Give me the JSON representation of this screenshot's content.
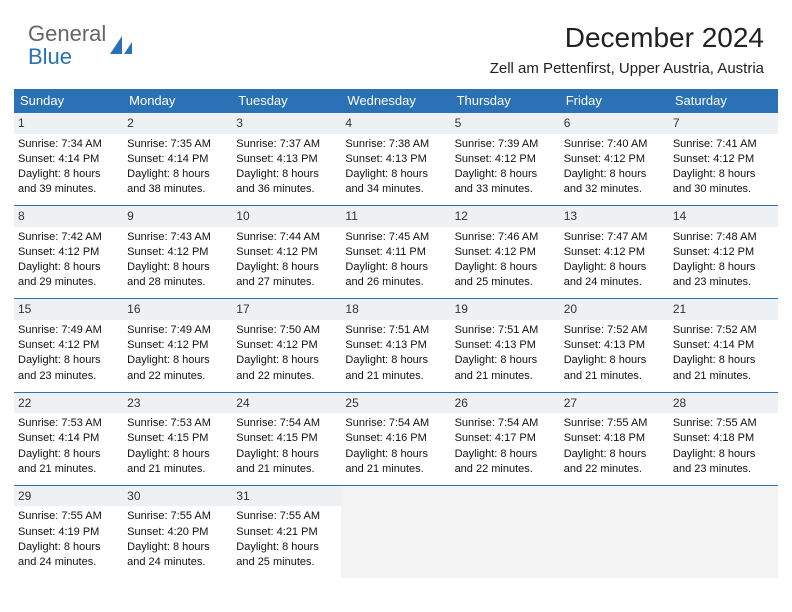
{
  "logo": {
    "top": "General",
    "bottom": "Blue"
  },
  "header": {
    "month_title": "December 2024",
    "location": "Zell am Pettenfirst, Upper Austria, Austria"
  },
  "colors": {
    "header_bg": "#2a72b5",
    "week_border": "#2a72b5",
    "daynum_bg": "#eef1f4",
    "empty_bg": "#f3f3f3",
    "text": "#111111"
  },
  "dayNames": [
    "Sunday",
    "Monday",
    "Tuesday",
    "Wednesday",
    "Thursday",
    "Friday",
    "Saturday"
  ],
  "weeks": [
    [
      {
        "n": "1",
        "sr": "Sunrise: 7:34 AM",
        "ss": "Sunset: 4:14 PM",
        "d1": "Daylight: 8 hours",
        "d2": "and 39 minutes."
      },
      {
        "n": "2",
        "sr": "Sunrise: 7:35 AM",
        "ss": "Sunset: 4:14 PM",
        "d1": "Daylight: 8 hours",
        "d2": "and 38 minutes."
      },
      {
        "n": "3",
        "sr": "Sunrise: 7:37 AM",
        "ss": "Sunset: 4:13 PM",
        "d1": "Daylight: 8 hours",
        "d2": "and 36 minutes."
      },
      {
        "n": "4",
        "sr": "Sunrise: 7:38 AM",
        "ss": "Sunset: 4:13 PM",
        "d1": "Daylight: 8 hours",
        "d2": "and 34 minutes."
      },
      {
        "n": "5",
        "sr": "Sunrise: 7:39 AM",
        "ss": "Sunset: 4:12 PM",
        "d1": "Daylight: 8 hours",
        "d2": "and 33 minutes."
      },
      {
        "n": "6",
        "sr": "Sunrise: 7:40 AM",
        "ss": "Sunset: 4:12 PM",
        "d1": "Daylight: 8 hours",
        "d2": "and 32 minutes."
      },
      {
        "n": "7",
        "sr": "Sunrise: 7:41 AM",
        "ss": "Sunset: 4:12 PM",
        "d1": "Daylight: 8 hours",
        "d2": "and 30 minutes."
      }
    ],
    [
      {
        "n": "8",
        "sr": "Sunrise: 7:42 AM",
        "ss": "Sunset: 4:12 PM",
        "d1": "Daylight: 8 hours",
        "d2": "and 29 minutes."
      },
      {
        "n": "9",
        "sr": "Sunrise: 7:43 AM",
        "ss": "Sunset: 4:12 PM",
        "d1": "Daylight: 8 hours",
        "d2": "and 28 minutes."
      },
      {
        "n": "10",
        "sr": "Sunrise: 7:44 AM",
        "ss": "Sunset: 4:12 PM",
        "d1": "Daylight: 8 hours",
        "d2": "and 27 minutes."
      },
      {
        "n": "11",
        "sr": "Sunrise: 7:45 AM",
        "ss": "Sunset: 4:11 PM",
        "d1": "Daylight: 8 hours",
        "d2": "and 26 minutes."
      },
      {
        "n": "12",
        "sr": "Sunrise: 7:46 AM",
        "ss": "Sunset: 4:12 PM",
        "d1": "Daylight: 8 hours",
        "d2": "and 25 minutes."
      },
      {
        "n": "13",
        "sr": "Sunrise: 7:47 AM",
        "ss": "Sunset: 4:12 PM",
        "d1": "Daylight: 8 hours",
        "d2": "and 24 minutes."
      },
      {
        "n": "14",
        "sr": "Sunrise: 7:48 AM",
        "ss": "Sunset: 4:12 PM",
        "d1": "Daylight: 8 hours",
        "d2": "and 23 minutes."
      }
    ],
    [
      {
        "n": "15",
        "sr": "Sunrise: 7:49 AM",
        "ss": "Sunset: 4:12 PM",
        "d1": "Daylight: 8 hours",
        "d2": "and 23 minutes."
      },
      {
        "n": "16",
        "sr": "Sunrise: 7:49 AM",
        "ss": "Sunset: 4:12 PM",
        "d1": "Daylight: 8 hours",
        "d2": "and 22 minutes."
      },
      {
        "n": "17",
        "sr": "Sunrise: 7:50 AM",
        "ss": "Sunset: 4:12 PM",
        "d1": "Daylight: 8 hours",
        "d2": "and 22 minutes."
      },
      {
        "n": "18",
        "sr": "Sunrise: 7:51 AM",
        "ss": "Sunset: 4:13 PM",
        "d1": "Daylight: 8 hours",
        "d2": "and 21 minutes."
      },
      {
        "n": "19",
        "sr": "Sunrise: 7:51 AM",
        "ss": "Sunset: 4:13 PM",
        "d1": "Daylight: 8 hours",
        "d2": "and 21 minutes."
      },
      {
        "n": "20",
        "sr": "Sunrise: 7:52 AM",
        "ss": "Sunset: 4:13 PM",
        "d1": "Daylight: 8 hours",
        "d2": "and 21 minutes."
      },
      {
        "n": "21",
        "sr": "Sunrise: 7:52 AM",
        "ss": "Sunset: 4:14 PM",
        "d1": "Daylight: 8 hours",
        "d2": "and 21 minutes."
      }
    ],
    [
      {
        "n": "22",
        "sr": "Sunrise: 7:53 AM",
        "ss": "Sunset: 4:14 PM",
        "d1": "Daylight: 8 hours",
        "d2": "and 21 minutes."
      },
      {
        "n": "23",
        "sr": "Sunrise: 7:53 AM",
        "ss": "Sunset: 4:15 PM",
        "d1": "Daylight: 8 hours",
        "d2": "and 21 minutes."
      },
      {
        "n": "24",
        "sr": "Sunrise: 7:54 AM",
        "ss": "Sunset: 4:15 PM",
        "d1": "Daylight: 8 hours",
        "d2": "and 21 minutes."
      },
      {
        "n": "25",
        "sr": "Sunrise: 7:54 AM",
        "ss": "Sunset: 4:16 PM",
        "d1": "Daylight: 8 hours",
        "d2": "and 21 minutes."
      },
      {
        "n": "26",
        "sr": "Sunrise: 7:54 AM",
        "ss": "Sunset: 4:17 PM",
        "d1": "Daylight: 8 hours",
        "d2": "and 22 minutes."
      },
      {
        "n": "27",
        "sr": "Sunrise: 7:55 AM",
        "ss": "Sunset: 4:18 PM",
        "d1": "Daylight: 8 hours",
        "d2": "and 22 minutes."
      },
      {
        "n": "28",
        "sr": "Sunrise: 7:55 AM",
        "ss": "Sunset: 4:18 PM",
        "d1": "Daylight: 8 hours",
        "d2": "and 23 minutes."
      }
    ],
    [
      {
        "n": "29",
        "sr": "Sunrise: 7:55 AM",
        "ss": "Sunset: 4:19 PM",
        "d1": "Daylight: 8 hours",
        "d2": "and 24 minutes."
      },
      {
        "n": "30",
        "sr": "Sunrise: 7:55 AM",
        "ss": "Sunset: 4:20 PM",
        "d1": "Daylight: 8 hours",
        "d2": "and 24 minutes."
      },
      {
        "n": "31",
        "sr": "Sunrise: 7:55 AM",
        "ss": "Sunset: 4:21 PM",
        "d1": "Daylight: 8 hours",
        "d2": "and 25 minutes."
      },
      null,
      null,
      null,
      null
    ]
  ]
}
